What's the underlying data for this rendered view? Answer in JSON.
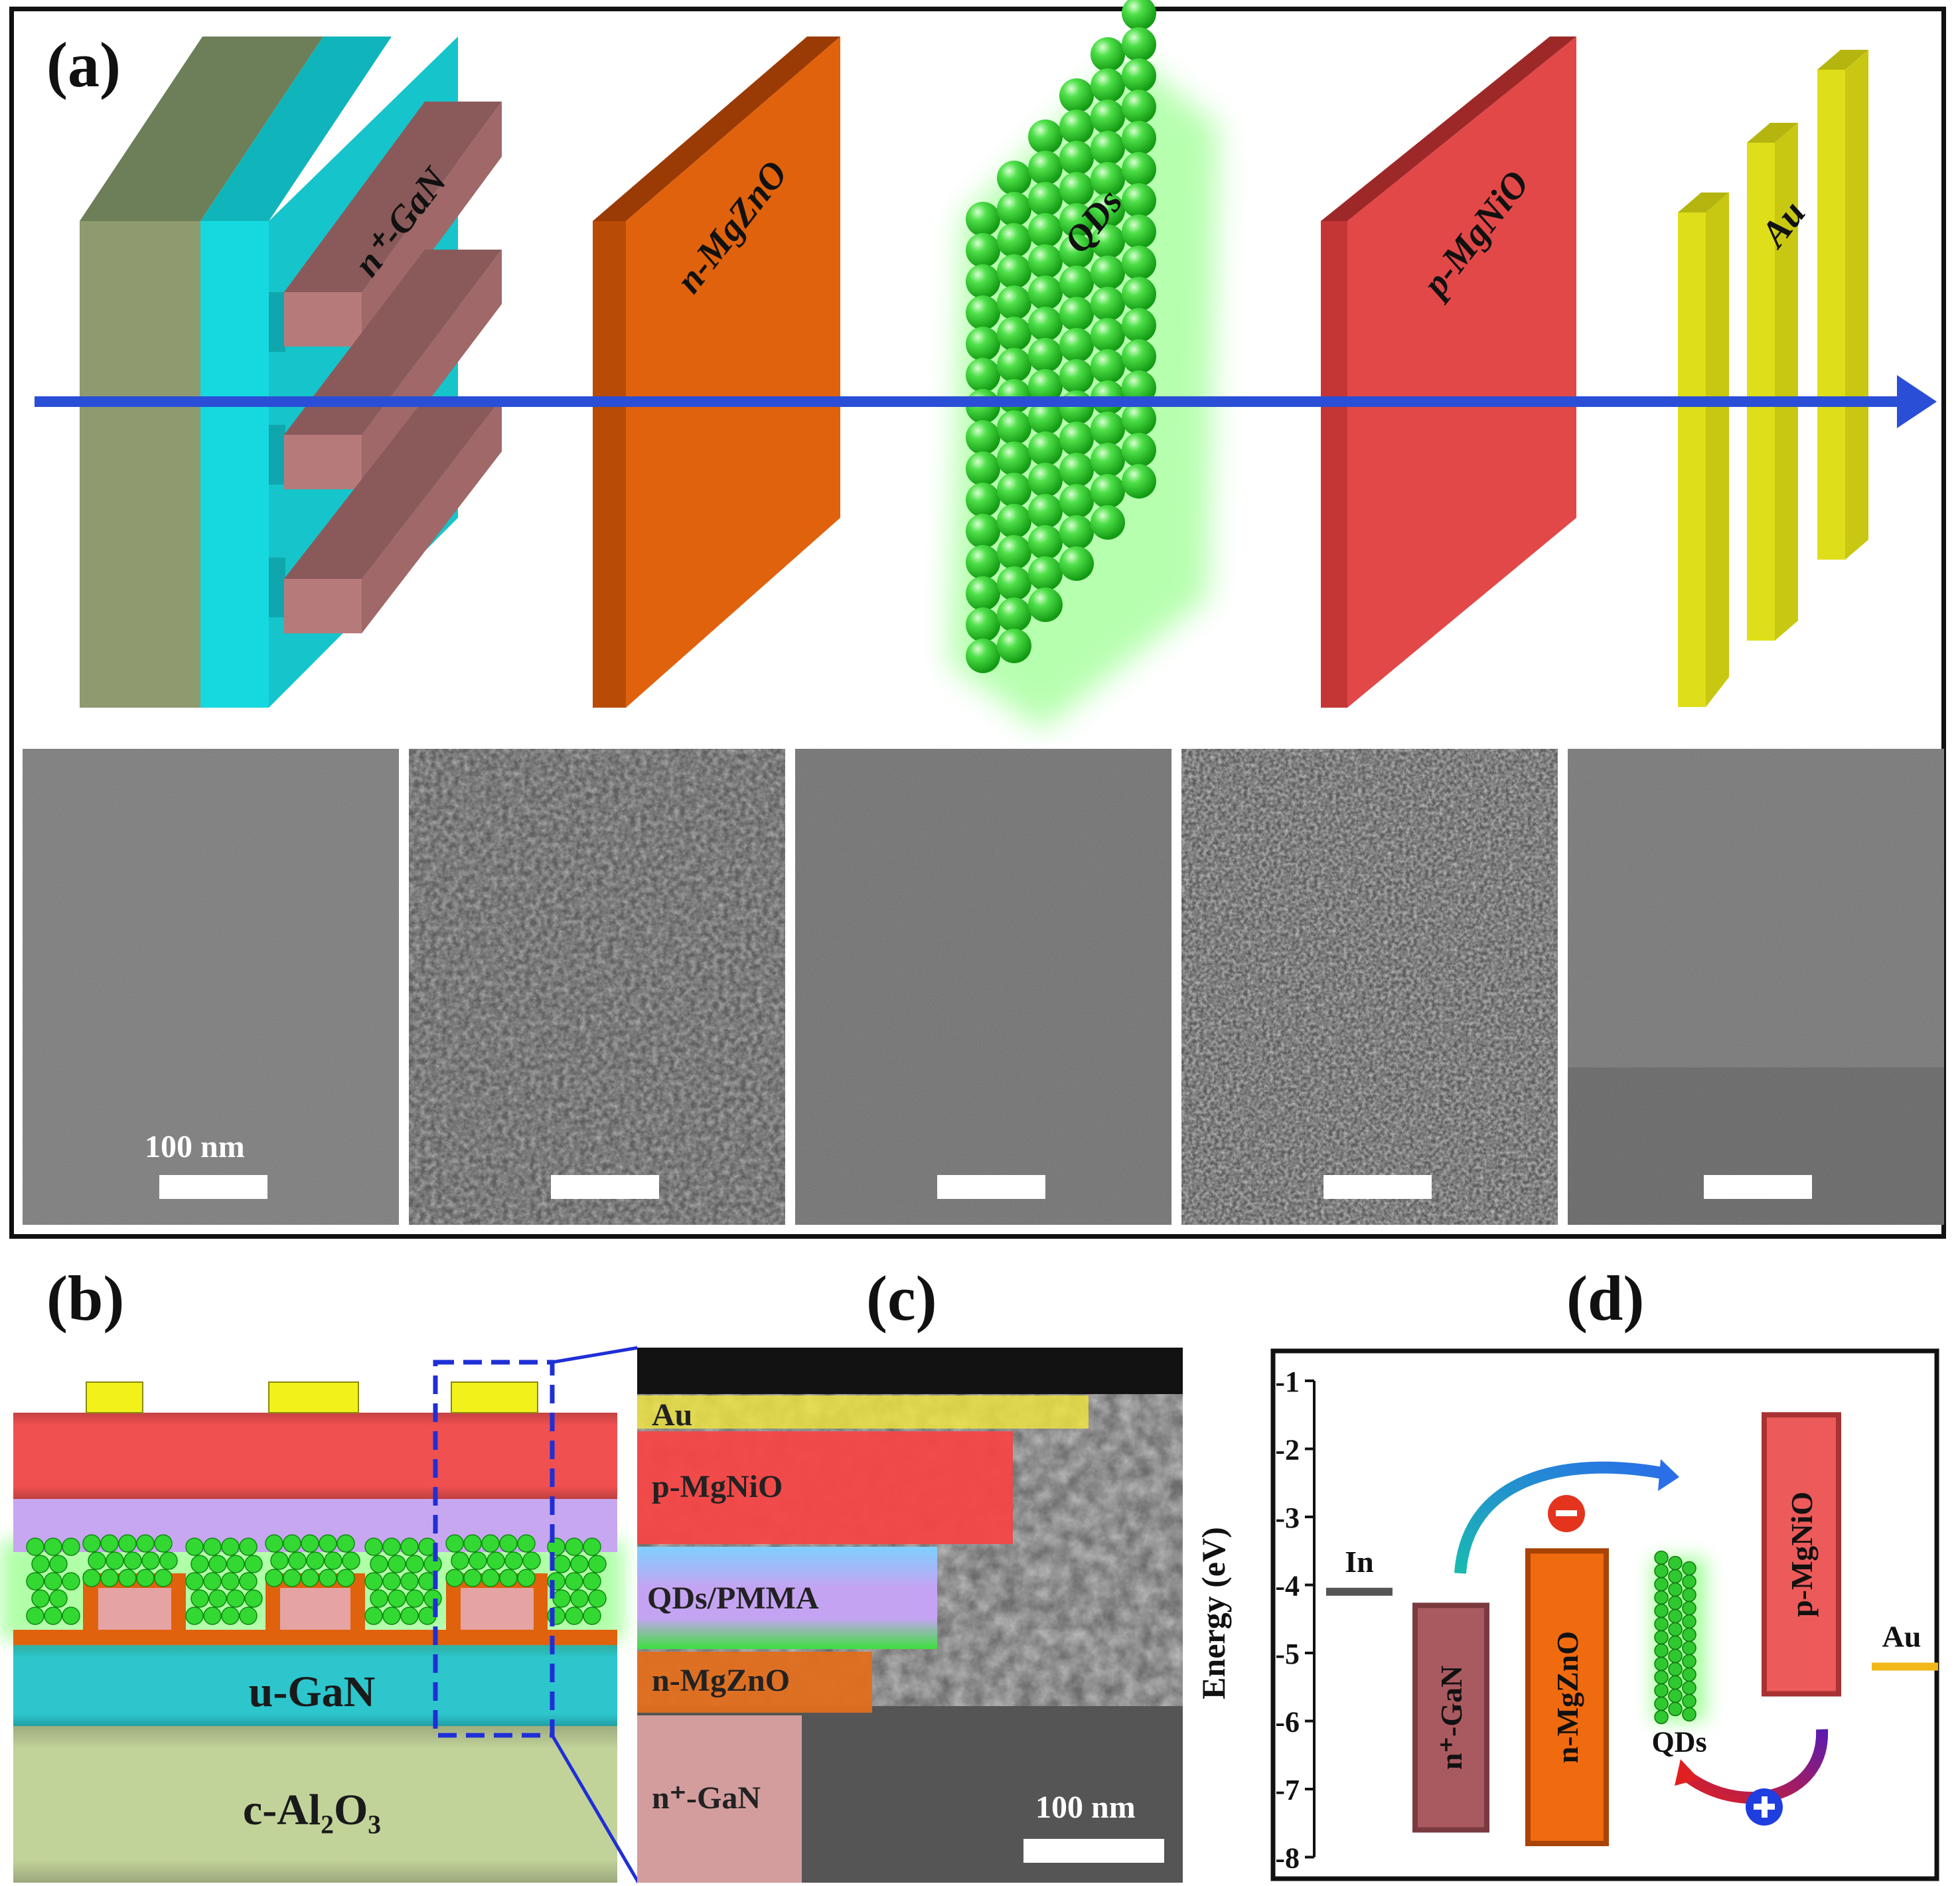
{
  "panels": {
    "a": {
      "label": "(a)",
      "layers": [
        "n⁺-GaN",
        "n-MgZnO",
        "QDs",
        "p-MgNiO",
        "Au"
      ],
      "scale_label": "100 nm"
    },
    "b": {
      "label": "(b)",
      "layers": [
        "u-GaN",
        "c-Al₂O₃"
      ]
    },
    "c": {
      "label": "(c)",
      "layers": [
        "Au",
        "p-MgNiO",
        "QDs/PMMA",
        "n-MgZnO",
        "n⁺-GaN"
      ],
      "scale_label": "100 nm"
    },
    "d": {
      "label": "(d)",
      "ylabel": "Energy (eV)",
      "ticks": [
        "-1",
        "-2",
        "-3",
        "-4",
        "-5",
        "-6",
        "-7",
        "-8"
      ],
      "levels": {
        "In": {
          "label": "In",
          "energy": -4.1
        },
        "nGaN": {
          "label": "n⁺-GaN",
          "top": -4.3,
          "bottom": -7.6
        },
        "nMgZnO": {
          "label": "n-MgZnO",
          "top": -3.5,
          "bottom": -7.8
        },
        "QDs": {
          "label": "QDs"
        },
        "pMgNiO": {
          "label": "p-MgNiO",
          "top": -1.5,
          "bottom": -5.6
        },
        "Au": {
          "label": "Au",
          "energy": -5.2
        }
      }
    }
  },
  "colors": {
    "sapphire": "#8f9a6e",
    "gan": "#16d9e0",
    "ngan_stripe": "#b77a7a",
    "mgzno": "#e0620c",
    "qd": "#2ecc2e",
    "mgnio": "#e24848",
    "au": "#dede1a",
    "arrow": "#2a4fd6"
  }
}
